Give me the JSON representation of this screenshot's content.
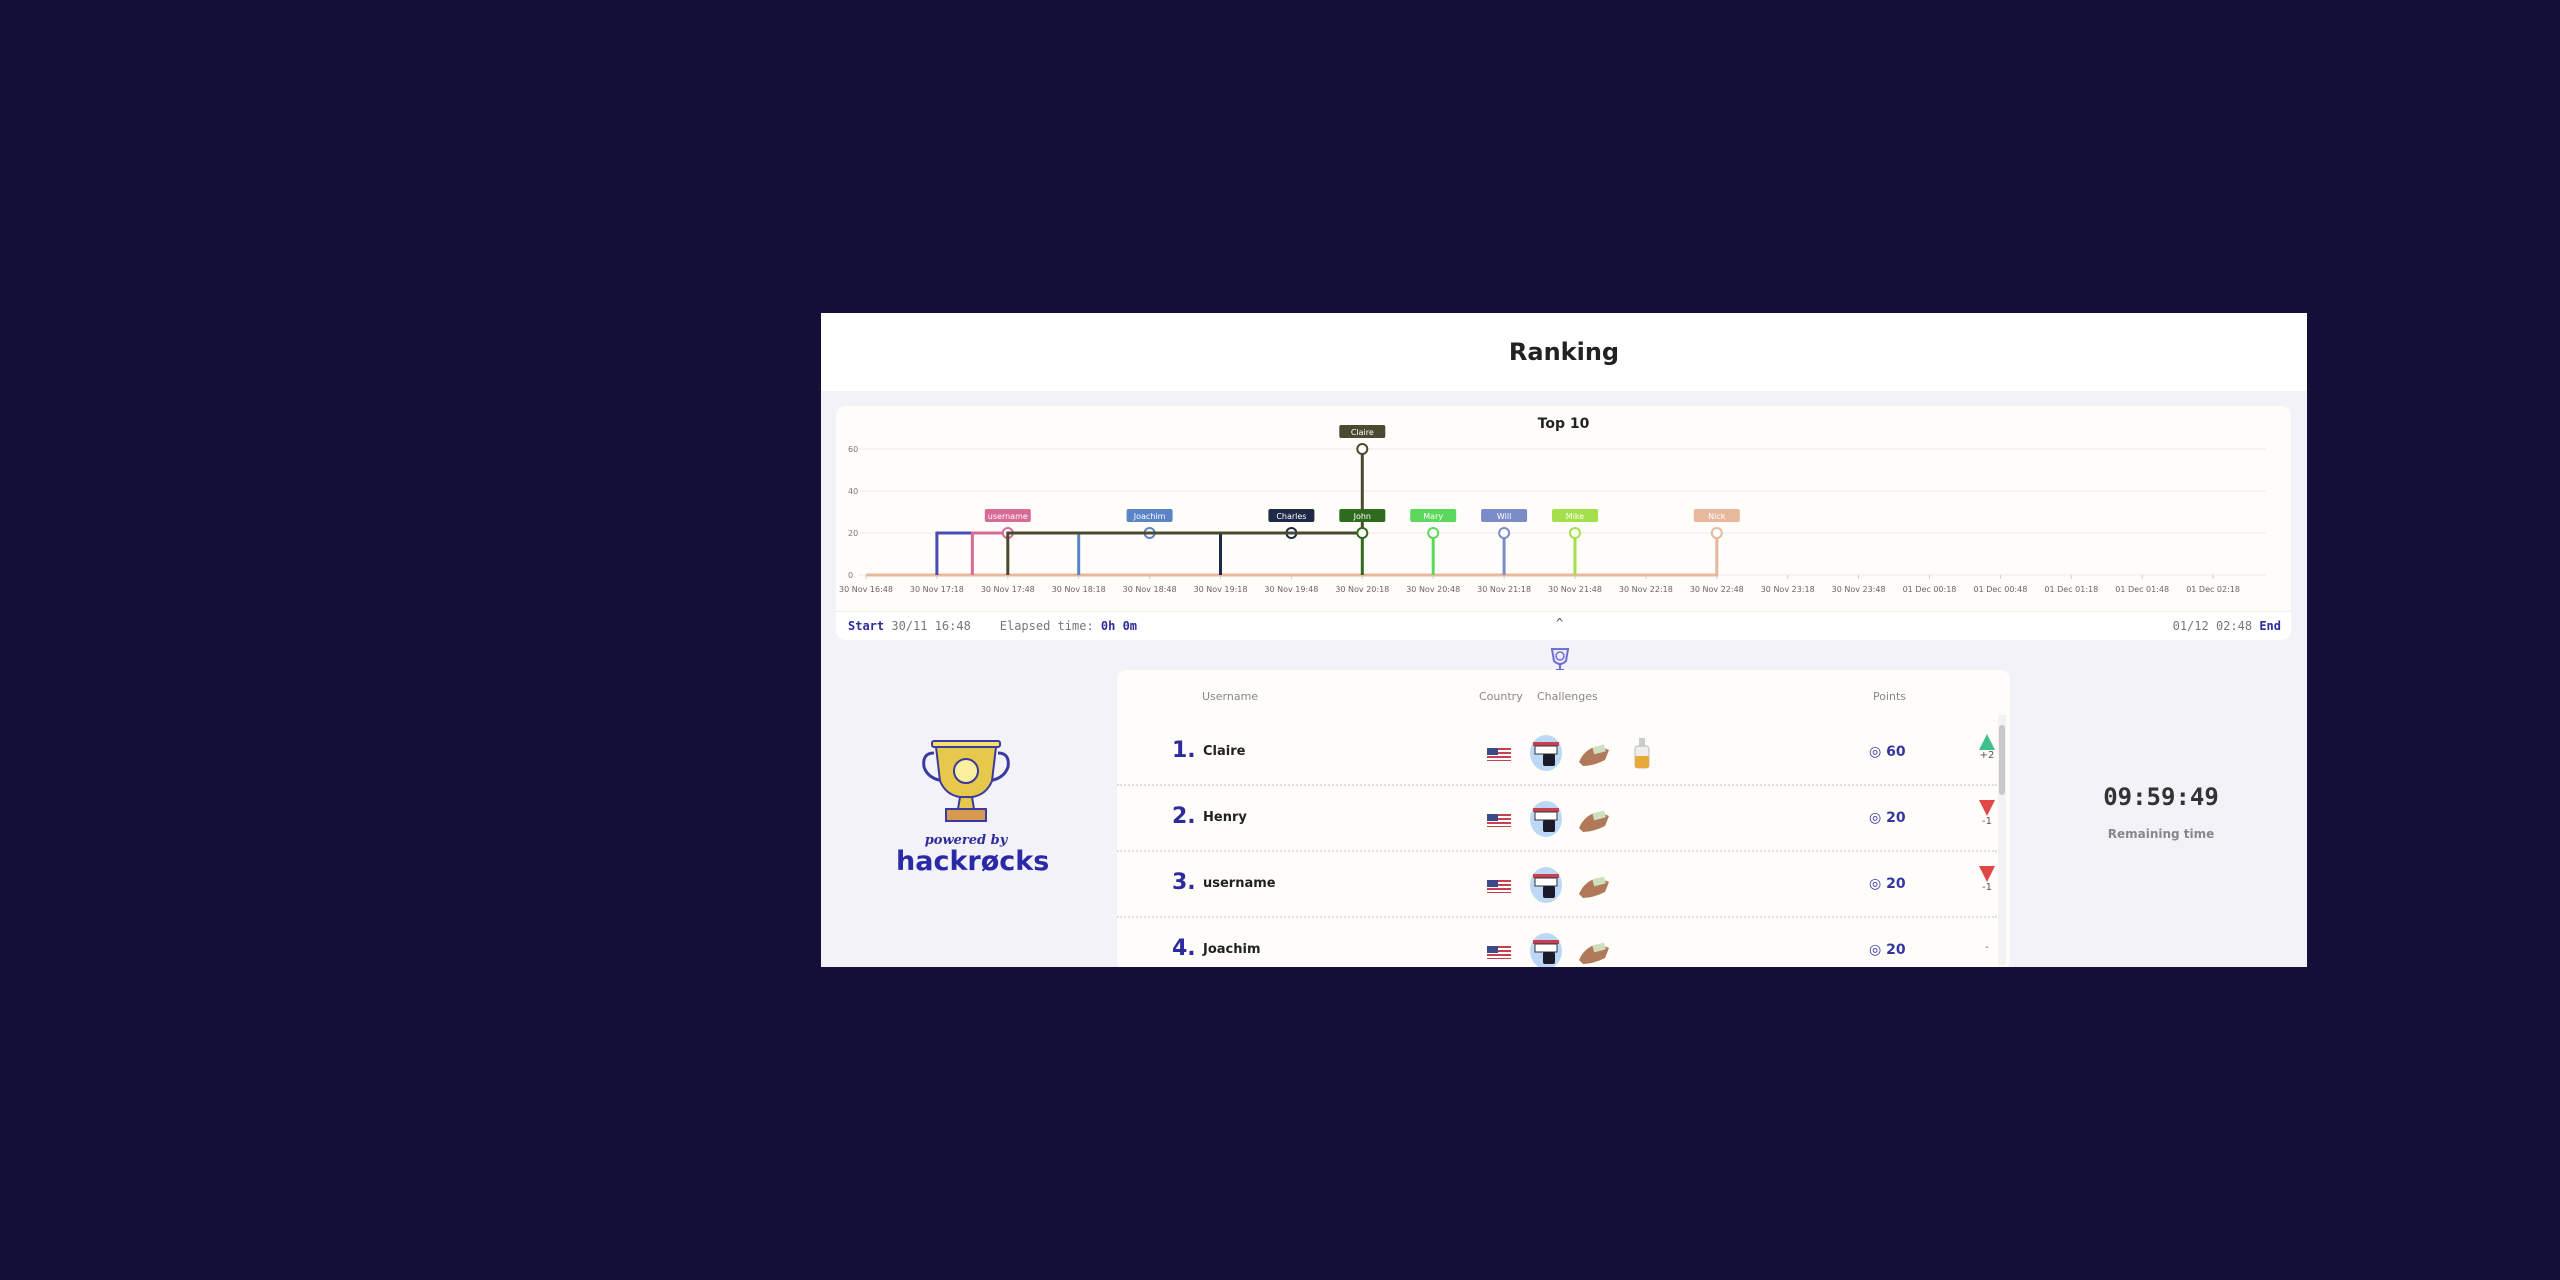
{
  "header": {
    "title": "Ranking"
  },
  "chart_data": {
    "type": "line",
    "title": "Top 10",
    "ylim": [
      0,
      60
    ],
    "yticks": [
      "0",
      "20",
      "40",
      "60"
    ],
    "xticks": [
      "30 Nov 16:48",
      "30 Nov 17:18",
      "30 Nov 17:48",
      "30 Nov 18:18",
      "30 Nov 18:48",
      "30 Nov 19:18",
      "30 Nov 19:48",
      "30 Nov 20:18",
      "30 Nov 20:48",
      "30 Nov 21:18",
      "30 Nov 21:48",
      "30 Nov 22:18",
      "30 Nov 22:48",
      "30 Nov 23:18",
      "30 Nov 23:48",
      "01 Dec 00:18",
      "01 Dec 00:48",
      "01 Dec 01:18",
      "01 Dec 01:48",
      "01 Dec 02:18"
    ],
    "grid": true,
    "series": [
      {
        "name": "Nick",
        "color": "#e8b89c",
        "points": [
          [
            "30 Nov 16:48",
            0
          ],
          [
            "30 Nov 22:48",
            0
          ],
          [
            "30 Nov 22:48",
            20
          ]
        ]
      },
      {
        "name": "",
        "color": "#4a4ab8",
        "points": [
          [
            "30 Nov 17:18",
            0
          ],
          [
            "30 Nov 17:18",
            20
          ],
          [
            "30 Nov 17:33",
            20
          ]
        ]
      },
      {
        "name": "username",
        "color": "#d86a96",
        "points": [
          [
            "30 Nov 17:33",
            0
          ],
          [
            "30 Nov 17:33",
            20
          ],
          [
            "30 Nov 17:48",
            20
          ]
        ]
      },
      {
        "name": "Joachim",
        "color": "#5b84c8",
        "points": [
          [
            "30 Nov 18:18",
            0
          ],
          [
            "30 Nov 18:18",
            20
          ],
          [
            "30 Nov 18:48",
            20
          ]
        ]
      },
      {
        "name": "Charles",
        "color": "#1e2a48",
        "points": [
          [
            "30 Nov 19:18",
            0
          ],
          [
            "30 Nov 19:18",
            20
          ],
          [
            "30 Nov 19:48",
            20
          ]
        ]
      },
      {
        "name": "Claire",
        "color": "#4a4a30",
        "points": [
          [
            "30 Nov 17:48",
            0
          ],
          [
            "30 Nov 17:48",
            20
          ],
          [
            "30 Nov 18:18",
            20
          ],
          [
            "30 Nov 18:48",
            20
          ],
          [
            "30 Nov 19:18",
            20
          ],
          [
            "30 Nov 20:18",
            20
          ],
          [
            "30 Nov 20:18",
            60
          ]
        ]
      },
      {
        "name": "John",
        "color": "#2f6b1f",
        "points": [
          [
            "30 Nov 20:18",
            0
          ],
          [
            "30 Nov 20:18",
            20
          ]
        ]
      },
      {
        "name": "Mary",
        "color": "#5cd85c",
        "points": [
          [
            "30 Nov 20:48",
            0
          ],
          [
            "30 Nov 20:48",
            20
          ]
        ]
      },
      {
        "name": "Will",
        "color": "#7c8cc8",
        "points": [
          [
            "30 Nov 21:18",
            0
          ],
          [
            "30 Nov 21:18",
            20
          ]
        ]
      },
      {
        "name": "Mike",
        "color": "#a4e04a",
        "points": [
          [
            "30 Nov 21:48",
            0
          ],
          [
            "30 Nov 21:48",
            20
          ]
        ]
      }
    ]
  },
  "chart_footer": {
    "start_label": "Start",
    "start_value": "30/11 16:48",
    "elapsed_label": "Elapsed time:",
    "elapsed_value": "0h 0m",
    "collapse_icon": "^",
    "end_value": "01/12 02:48",
    "end_label": "End"
  },
  "logo": {
    "powered": "powered by",
    "brand": "hackrøcks"
  },
  "table": {
    "headers": {
      "username": "Username",
      "country": "Country",
      "challenges": "Challenges",
      "points": "Points"
    },
    "rows": [
      {
        "rank": "1.",
        "username": "Claire",
        "country": "US",
        "challenges": [
          "ship",
          "hands",
          "bottle"
        ],
        "points": "60",
        "trend": "up",
        "delta": "+2"
      },
      {
        "rank": "2.",
        "username": "Henry",
        "country": "US",
        "challenges": [
          "ship",
          "hands"
        ],
        "points": "20",
        "trend": "down",
        "delta": "-1"
      },
      {
        "rank": "3.",
        "username": "username",
        "country": "US",
        "challenges": [
          "ship",
          "hands"
        ],
        "points": "20",
        "trend": "down",
        "delta": "-1"
      },
      {
        "rank": "4.",
        "username": "Joachim",
        "country": "US",
        "challenges": [
          "ship",
          "hands"
        ],
        "points": "20",
        "trend": "none",
        "delta": "-"
      }
    ]
  },
  "timer": {
    "value": "09:59:49",
    "label": "Remaining time"
  }
}
